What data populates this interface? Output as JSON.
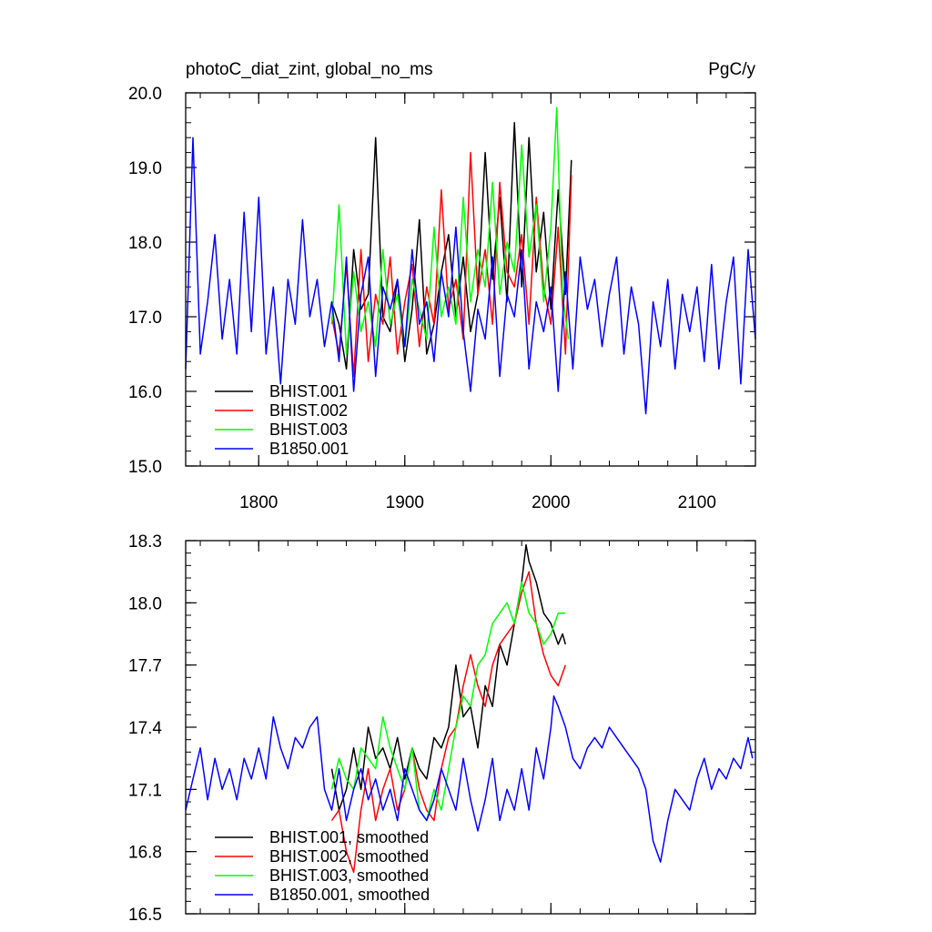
{
  "chart_data": [
    {
      "type": "line",
      "title": "photoC_diat_zint, global_no_ms",
      "units": "PgC/y",
      "xlim": [
        1750,
        2140
      ],
      "ylim": [
        15.0,
        20.0
      ],
      "xticks": [
        1800,
        1900,
        2000,
        2100
      ],
      "xtick_labels": [
        "1800",
        "1900",
        "2000",
        "2100"
      ],
      "yticks": [
        15.0,
        16.0,
        17.0,
        18.0,
        19.0,
        20.0
      ],
      "ytick_labels": [
        "15.0",
        "16.0",
        "17.0",
        "18.0",
        "19.0",
        "20.0"
      ],
      "legend_position": "lower-left",
      "series": [
        {
          "name": "BHIST.001",
          "color": "#000000",
          "x": [
            1850,
            1855,
            1860,
            1865,
            1870,
            1875,
            1880,
            1885,
            1890,
            1895,
            1900,
            1905,
            1910,
            1915,
            1920,
            1925,
            1930,
            1935,
            1940,
            1945,
            1950,
            1955,
            1960,
            1965,
            1970,
            1975,
            1980,
            1985,
            1990,
            1995,
            2000,
            2005,
            2010,
            2014
          ],
          "y": [
            17.2,
            16.9,
            16.3,
            17.9,
            17.1,
            17.3,
            19.4,
            17.0,
            16.8,
            17.5,
            16.4,
            17.1,
            18.3,
            16.5,
            16.9,
            17.6,
            18.1,
            17.0,
            17.8,
            16.8,
            17.3,
            19.2,
            17.5,
            18.6,
            17.2,
            19.6,
            17.4,
            19.4,
            17.6,
            18.4,
            17.1,
            18.7,
            17.3,
            19.1
          ]
        },
        {
          "name": "BHIST.002",
          "color": "#ff0000",
          "x": [
            1850,
            1855,
            1860,
            1865,
            1870,
            1875,
            1880,
            1885,
            1890,
            1895,
            1900,
            1905,
            1910,
            1915,
            1920,
            1925,
            1930,
            1935,
            1940,
            1945,
            1950,
            1955,
            1960,
            1965,
            1970,
            1975,
            1980,
            1985,
            1990,
            1995,
            2000,
            2005,
            2010,
            2014
          ],
          "y": [
            17.0,
            16.5,
            17.7,
            16.2,
            17.9,
            16.4,
            17.3,
            16.9,
            17.8,
            16.5,
            17.2,
            17.7,
            16.6,
            17.4,
            16.9,
            18.7,
            17.1,
            17.5,
            16.7,
            19.2,
            17.3,
            17.9,
            16.9,
            18.8,
            17.6,
            17.4,
            18.1,
            16.9,
            18.6,
            17.4,
            16.9,
            18.2,
            16.5,
            18.9
          ]
        },
        {
          "name": "BHIST.003",
          "color": "#00ff00",
          "x": [
            1850,
            1855,
            1860,
            1865,
            1870,
            1875,
            1880,
            1885,
            1890,
            1895,
            1900,
            1905,
            1910,
            1915,
            1920,
            1925,
            1930,
            1935,
            1940,
            1945,
            1950,
            1955,
            1960,
            1965,
            1970,
            1975,
            1980,
            1985,
            1990,
            1995,
            2000,
            2004,
            2008,
            2012
          ],
          "y": [
            16.9,
            18.5,
            16.5,
            17.6,
            16.8,
            17.2,
            16.6,
            17.9,
            16.9,
            17.3,
            16.6,
            17.5,
            17.1,
            16.7,
            18.2,
            17.0,
            17.4,
            16.9,
            18.6,
            17.2,
            17.9,
            17.4,
            18.8,
            17.3,
            18.0,
            17.6,
            19.3,
            17.8,
            18.5,
            17.2,
            18.2,
            19.8,
            17.3,
            16.7
          ]
        },
        {
          "name": "B1850.001",
          "color": "#0000ff",
          "x": [
            1750,
            1755,
            1760,
            1765,
            1770,
            1775,
            1780,
            1785,
            1790,
            1795,
            1800,
            1805,
            1810,
            1815,
            1820,
            1825,
            1830,
            1835,
            1840,
            1845,
            1850,
            1855,
            1860,
            1865,
            1870,
            1875,
            1880,
            1885,
            1890,
            1895,
            1900,
            1905,
            1910,
            1915,
            1920,
            1925,
            1930,
            1935,
            1940,
            1945,
            1950,
            1955,
            1960,
            1965,
            1970,
            1975,
            1980,
            1985,
            1990,
            1995,
            2000,
            2005,
            2010,
            2015,
            2020,
            2025,
            2030,
            2035,
            2040,
            2045,
            2050,
            2055,
            2060,
            2065,
            2070,
            2075,
            2080,
            2085,
            2090,
            2095,
            2100,
            2105,
            2110,
            2115,
            2120,
            2125,
            2130,
            2135,
            2140
          ],
          "y": [
            16.3,
            19.4,
            16.5,
            17.2,
            18.1,
            16.7,
            17.5,
            16.5,
            18.4,
            16.8,
            18.6,
            16.5,
            17.4,
            16.1,
            17.5,
            16.9,
            18.3,
            17.0,
            17.5,
            16.6,
            17.2,
            16.4,
            17.8,
            16.0,
            17.3,
            17.8,
            16.2,
            17.4,
            17.1,
            17.5,
            16.6,
            17.9,
            16.9,
            17.2,
            16.4,
            17.6,
            17.0,
            18.2,
            16.8,
            16.0,
            17.1,
            16.7,
            17.8,
            16.2,
            17.3,
            17.0,
            17.9,
            16.3,
            17.2,
            16.8,
            17.4,
            16.0,
            17.6,
            16.3,
            17.8,
            17.1,
            17.5,
            16.6,
            17.3,
            17.8,
            16.5,
            17.4,
            16.9,
            15.7,
            17.2,
            16.6,
            17.5,
            16.3,
            17.3,
            16.8,
            17.4,
            16.4,
            17.7,
            16.3,
            17.2,
            17.8,
            16.1,
            17.9,
            16.7
          ]
        }
      ],
      "legend": [
        "BHIST.001",
        "BHIST.002",
        "BHIST.003",
        "B1850.001"
      ]
    },
    {
      "type": "line",
      "title": "",
      "xlim": [
        1750,
        2140
      ],
      "ylim": [
        16.5,
        18.3
      ],
      "xticks": [
        1800,
        1900,
        2000,
        2100
      ],
      "yticks": [
        16.5,
        16.8,
        17.1,
        17.4,
        17.7,
        18.0,
        18.3
      ],
      "ytick_labels": [
        "16.5",
        "16.8",
        "17.1",
        "17.4",
        "17.7",
        "18.0",
        "18.3"
      ],
      "legend_position": "lower-left",
      "series": [
        {
          "name": "BHIST.001, smoothed",
          "color": "#000000",
          "x": [
            1850,
            1855,
            1860,
            1865,
            1870,
            1875,
            1880,
            1885,
            1890,
            1895,
            1900,
            1905,
            1910,
            1915,
            1920,
            1925,
            1930,
            1935,
            1940,
            1945,
            1950,
            1955,
            1960,
            1965,
            1970,
            1975,
            1980,
            1983,
            1985,
            1990,
            1995,
            2000,
            2005,
            2008,
            2010
          ],
          "y": [
            17.2,
            17.0,
            17.1,
            17.3,
            17.1,
            17.4,
            17.25,
            17.3,
            17.2,
            17.35,
            17.15,
            17.3,
            17.2,
            17.15,
            17.35,
            17.3,
            17.4,
            17.7,
            17.45,
            17.5,
            17.3,
            17.6,
            17.5,
            17.8,
            17.7,
            17.9,
            18.1,
            18.28,
            18.2,
            18.1,
            17.95,
            17.9,
            17.8,
            17.85,
            17.8
          ]
        },
        {
          "name": "BHIST.002, smoothed",
          "color": "#ff0000",
          "x": [
            1850,
            1855,
            1860,
            1865,
            1870,
            1875,
            1880,
            1885,
            1890,
            1895,
            1900,
            1905,
            1910,
            1915,
            1920,
            1925,
            1930,
            1935,
            1940,
            1945,
            1950,
            1955,
            1960,
            1965,
            1970,
            1975,
            1980,
            1985,
            1990,
            1995,
            2000,
            2005,
            2010
          ],
          "y": [
            16.95,
            17.0,
            16.8,
            16.7,
            17.0,
            17.2,
            16.95,
            17.1,
            17.2,
            17.0,
            17.1,
            17.3,
            17.1,
            17.0,
            16.95,
            17.2,
            17.35,
            17.4,
            17.6,
            17.75,
            17.6,
            17.5,
            17.7,
            17.8,
            17.85,
            17.9,
            18.05,
            18.15,
            17.9,
            17.75,
            17.65,
            17.6,
            17.7
          ]
        },
        {
          "name": "BHIST.003, smoothed",
          "color": "#00ff00",
          "x": [
            1850,
            1855,
            1860,
            1865,
            1870,
            1875,
            1880,
            1885,
            1890,
            1895,
            1900,
            1905,
            1910,
            1915,
            1920,
            1925,
            1930,
            1935,
            1940,
            1945,
            1950,
            1955,
            1960,
            1965,
            1970,
            1975,
            1980,
            1985,
            1990,
            1995,
            2000,
            2005,
            2010
          ],
          "y": [
            17.1,
            17.25,
            17.15,
            17.1,
            17.3,
            17.25,
            17.2,
            17.45,
            17.3,
            17.2,
            17.1,
            17.3,
            17.0,
            16.95,
            17.1,
            17.0,
            17.2,
            17.4,
            17.55,
            17.5,
            17.7,
            17.75,
            17.9,
            17.95,
            18.0,
            17.9,
            18.1,
            17.95,
            17.9,
            17.8,
            17.85,
            17.95,
            17.95
          ]
        },
        {
          "name": "B1850.001, smoothed",
          "color": "#0000ff",
          "x": [
            1750,
            1755,
            1760,
            1765,
            1770,
            1775,
            1780,
            1785,
            1790,
            1795,
            1800,
            1805,
            1810,
            1815,
            1820,
            1825,
            1830,
            1835,
            1840,
            1845,
            1850,
            1855,
            1860,
            1865,
            1870,
            1875,
            1880,
            1885,
            1890,
            1895,
            1900,
            1905,
            1910,
            1915,
            1920,
            1925,
            1930,
            1935,
            1940,
            1945,
            1950,
            1955,
            1960,
            1965,
            1970,
            1975,
            1980,
            1985,
            1990,
            1995,
            2000,
            2002,
            2005,
            2010,
            2015,
            2020,
            2025,
            2030,
            2035,
            2040,
            2045,
            2050,
            2055,
            2060,
            2065,
            2070,
            2075,
            2080,
            2085,
            2090,
            2095,
            2100,
            2105,
            2110,
            2115,
            2120,
            2125,
            2130,
            2135,
            2138
          ],
          "y": [
            17.0,
            17.15,
            17.3,
            17.05,
            17.25,
            17.1,
            17.2,
            17.05,
            17.25,
            17.15,
            17.3,
            17.15,
            17.45,
            17.3,
            17.2,
            17.35,
            17.3,
            17.4,
            17.45,
            17.1,
            17.0,
            17.2,
            16.95,
            17.1,
            17.2,
            17.05,
            17.15,
            17.0,
            17.1,
            16.95,
            17.2,
            17.1,
            17.0,
            16.95,
            17.05,
            17.2,
            17.1,
            17.0,
            17.25,
            17.05,
            16.9,
            17.05,
            17.25,
            16.95,
            17.1,
            17.0,
            17.2,
            17.0,
            17.3,
            17.15,
            17.4,
            17.55,
            17.5,
            17.4,
            17.25,
            17.2,
            17.3,
            17.35,
            17.3,
            17.4,
            17.35,
            17.3,
            17.25,
            17.2,
            17.1,
            16.85,
            16.75,
            16.95,
            17.1,
            17.05,
            17.0,
            17.15,
            17.25,
            17.1,
            17.2,
            17.15,
            17.25,
            17.2,
            17.35,
            17.25
          ]
        }
      ],
      "legend": [
        "BHIST.001, smoothed",
        "BHIST.002, smoothed",
        "BHIST.003, smoothed",
        "B1850.001, smoothed"
      ]
    }
  ]
}
